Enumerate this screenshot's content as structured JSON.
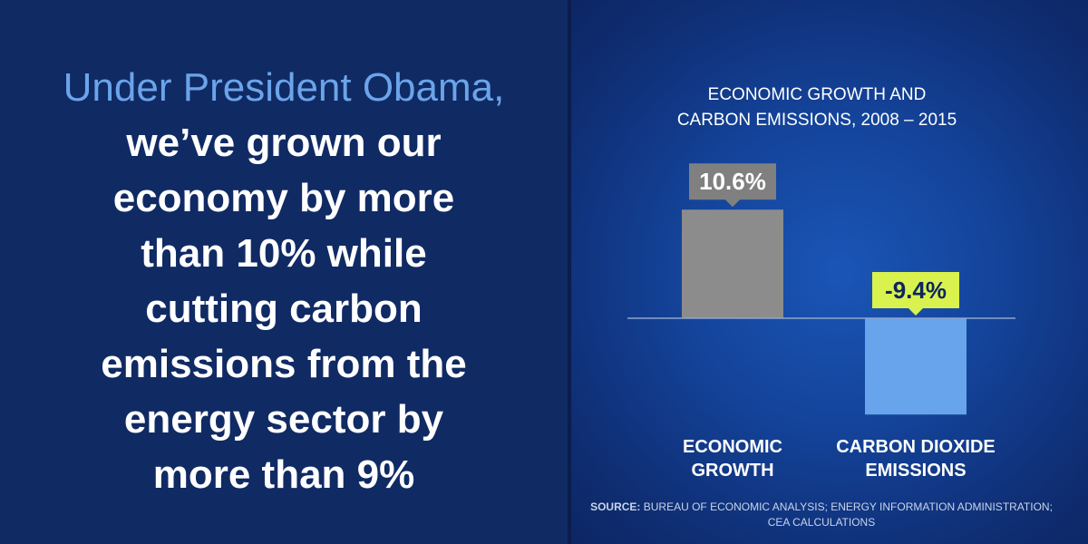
{
  "headline": {
    "lead": "Under President Obama,",
    "body_lines": [
      "we’ve grown our",
      "economy by more",
      "than 10% while",
      "cutting carbon",
      "emissions from the",
      "energy sector by",
      "more than 9%"
    ]
  },
  "colors": {
    "lead_text": "#6ba4ea",
    "growth_bar": "#8c8c8c",
    "emissions_bar": "#67a4eb",
    "growth_label_bg": "#808080",
    "emissions_label_bg": "#d9f24e"
  },
  "chart_data": {
    "type": "bar",
    "title_lines": [
      "ECONOMIC GROWTH AND",
      "CARBON EMISSIONS, 2008 – 2015"
    ],
    "categories": [
      [
        "ECONOMIC",
        "GROWTH"
      ],
      [
        "CARBON DIOXIDE",
        "EMISSIONS"
      ]
    ],
    "values": [
      10.6,
      -9.4
    ],
    "data_labels": [
      "10.6%",
      "-9.4%"
    ],
    "ylim": [
      -10.5,
      12
    ],
    "grid": false,
    "legend": "none"
  },
  "source": {
    "label": "SOURCE:",
    "line1": " BUREAU OF ECONOMIC ANALYSIS; ENERGY INFORMATION ADMINISTRATION;",
    "line2": "CEA CALCULATIONS"
  }
}
